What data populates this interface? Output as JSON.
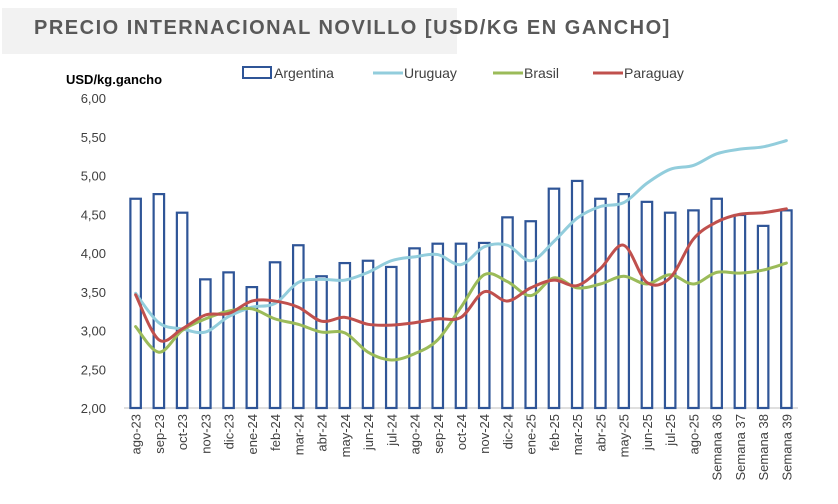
{
  "chart_data": {
    "type": "bar+line",
    "title": "PRECIO INTERNACIONAL NOVILLO [USD/KG EN GANCHO]",
    "ylabel": "USD/kg.gancho",
    "xlabel": "",
    "ylim": [
      2.0,
      6.0
    ],
    "yticks": [
      "2,00",
      "2,50",
      "3,00",
      "3,50",
      "4,00",
      "4,50",
      "5,00",
      "5,50",
      "6,00"
    ],
    "ytick_values": [
      2.0,
      2.5,
      3.0,
      3.5,
      4.0,
      4.5,
      5.0,
      5.5,
      6.0
    ],
    "legend_placement": "top",
    "grid": false,
    "categories": [
      "ago-23",
      "sep-23",
      "oct-23",
      "nov-23",
      "dic-23",
      "ene-24",
      "feb-24",
      "mar-24",
      "abr-24",
      "may-24",
      "jun-24",
      "jul-24",
      "ago-24",
      "sep-24",
      "oct-24",
      "nov-24",
      "dic-24",
      "ene-25",
      "feb-25",
      "mar-25",
      "abr-25",
      "may-25",
      "jun-25",
      "jul-25",
      "ago-25",
      "Semana 36",
      "Semana 37",
      "Semana 38",
      "Semana 39"
    ],
    "series": [
      {
        "name": "Argentina",
        "kind": "bar",
        "color": "#2f5597",
        "values": [
          4.7,
          4.76,
          4.52,
          3.66,
          3.75,
          3.56,
          3.88,
          4.1,
          3.7,
          3.87,
          3.9,
          3.82,
          4.06,
          4.12,
          4.12,
          4.13,
          4.46,
          4.41,
          4.83,
          4.93,
          4.7,
          4.76,
          4.66,
          4.52,
          4.55,
          4.7,
          4.49,
          4.35,
          4.55
        ]
      },
      {
        "name": "Uruguay",
        "kind": "line",
        "color": "#92cddc",
        "values": [
          3.48,
          3.1,
          3.02,
          2.98,
          3.18,
          3.3,
          3.35,
          3.62,
          3.66,
          3.65,
          3.75,
          3.9,
          3.95,
          3.98,
          3.85,
          4.08,
          4.1,
          3.9,
          4.15,
          4.45,
          4.6,
          4.65,
          4.9,
          5.08,
          5.13,
          5.28,
          5.34,
          5.37,
          5.45
        ]
      },
      {
        "name": "Brasil",
        "kind": "line",
        "color": "#9bbb59",
        "values": [
          3.05,
          2.72,
          3.0,
          3.15,
          3.25,
          3.28,
          3.15,
          3.08,
          2.98,
          2.97,
          2.72,
          2.62,
          2.7,
          2.88,
          3.3,
          3.72,
          3.63,
          3.45,
          3.68,
          3.55,
          3.6,
          3.7,
          3.6,
          3.72,
          3.6,
          3.75,
          3.74,
          3.78,
          3.87
        ]
      },
      {
        "name": "Paraguay",
        "kind": "line",
        "color": "#c0504d",
        "values": [
          3.46,
          2.88,
          3.02,
          3.2,
          3.22,
          3.38,
          3.38,
          3.3,
          3.12,
          3.17,
          3.08,
          3.07,
          3.1,
          3.15,
          3.17,
          3.5,
          3.38,
          3.55,
          3.65,
          3.58,
          3.8,
          4.1,
          3.62,
          3.68,
          4.18,
          4.4,
          4.5,
          4.52,
          4.57
        ]
      }
    ]
  }
}
